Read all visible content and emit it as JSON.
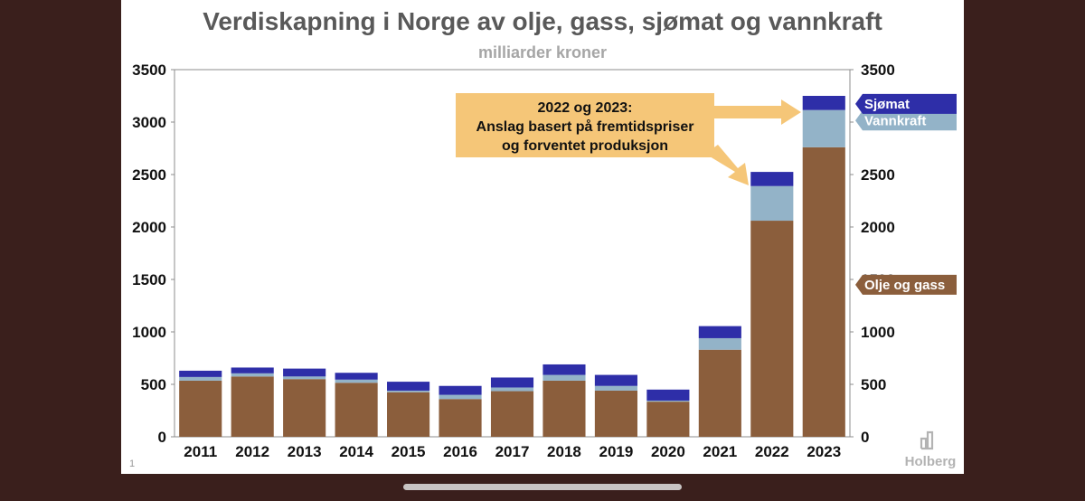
{
  "slide": {
    "page_number": "1",
    "brand": "Holberg",
    "brand_icon": "bar-chart-logo-icon"
  },
  "chart_data": {
    "type": "bar",
    "stacked": true,
    "title": "Verdiskapning i Norge av olje, gass, sjømat og vannkraft",
    "subtitle": "milliarder kroner",
    "categories": [
      "2011",
      "2012",
      "2013",
      "2014",
      "2015",
      "2016",
      "2017",
      "2018",
      "2019",
      "2020",
      "2021",
      "2022",
      "2023"
    ],
    "series": [
      {
        "name": "Olje og gass",
        "color": "#8b5e3c",
        "values": [
          535,
          575,
          550,
          515,
          425,
          360,
          435,
          535,
          440,
          335,
          830,
          2060,
          2760
        ]
      },
      {
        "name": "Vannkraft",
        "color": "#93b3c8",
        "values": [
          35,
          30,
          25,
          30,
          15,
          40,
          35,
          55,
          45,
          10,
          110,
          330,
          355
        ]
      },
      {
        "name": "Sjømat",
        "color": "#2e2ea8",
        "values": [
          60,
          55,
          75,
          65,
          85,
          85,
          95,
          100,
          105,
          105,
          115,
          135,
          135
        ]
      }
    ],
    "ylim": [
      0,
      3500
    ],
    "yticks": [
      0,
      500,
      1000,
      1500,
      2000,
      2500,
      3000,
      3500
    ],
    "right_axis_mirror": true,
    "grid": false,
    "legend": "right, labels next to 2023 bar",
    "annotation": {
      "lines": [
        "2022 og 2023:",
        "Anslag basert på fremtidspriser",
        "og forventet produksjon"
      ],
      "color": "#f5c678",
      "points_to": [
        "2022",
        "2023"
      ]
    }
  }
}
